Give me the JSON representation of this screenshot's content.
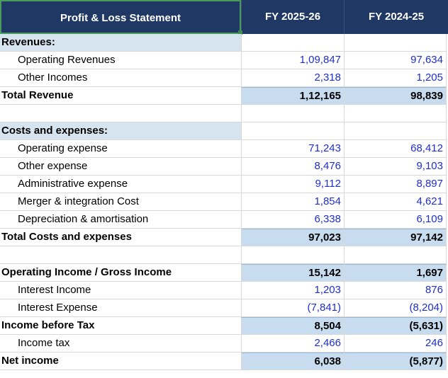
{
  "header": {
    "title": "Profit & Loss Statement",
    "col1": "FY 2025-26",
    "col2": "FY 2024-25"
  },
  "rows": [
    {
      "label": "Revenues:",
      "v1": "",
      "v2": ""
    },
    {
      "label": "Operating Revenues",
      "v1": "1,09,847",
      "v2": "97,634"
    },
    {
      "label": "Other Incomes",
      "v1": "2,318",
      "v2": "1,205"
    },
    {
      "label": "Total Revenue",
      "v1": "1,12,165",
      "v2": "98,839"
    },
    {
      "label": "",
      "v1": "",
      "v2": ""
    },
    {
      "label": "Costs and expenses:",
      "v1": "",
      "v2": ""
    },
    {
      "label": "Operating expense",
      "v1": "71,243",
      "v2": "68,412"
    },
    {
      "label": "Other expense",
      "v1": "8,476",
      "v2": "9,103"
    },
    {
      "label": "Administrative expense",
      "v1": "9,112",
      "v2": "8,897"
    },
    {
      "label": "Merger & integration Cost",
      "v1": "1,854",
      "v2": "4,621"
    },
    {
      "label": "Depreciation & amortisation",
      "v1": "6,338",
      "v2": "6,109"
    },
    {
      "label": "Total Costs and expenses",
      "v1": "97,023",
      "v2": "97,142"
    },
    {
      "label": "",
      "v1": "",
      "v2": ""
    },
    {
      "label": "Operating Income / Gross Income",
      "v1": "15,142",
      "v2": "1,697"
    },
    {
      "label": "Interest Income",
      "v1": "1,203",
      "v2": "876"
    },
    {
      "label": "Interest Expense",
      "v1": "(7,841)",
      "v2": "(8,204)"
    },
    {
      "label": "Income before Tax",
      "v1": "8,504",
      "v2": "(5,631)"
    },
    {
      "label": "Income tax",
      "v1": "2,466",
      "v2": "246"
    },
    {
      "label": "Net income",
      "v1": "6,038",
      "v2": "(5,877)"
    }
  ],
  "colors": {
    "header_bg": "#1f3864",
    "section_bg": "#d6e4f0",
    "total_bg": "#c7dcef",
    "number_text": "#1f2fd0",
    "selection_border": "#4a9a5e"
  }
}
